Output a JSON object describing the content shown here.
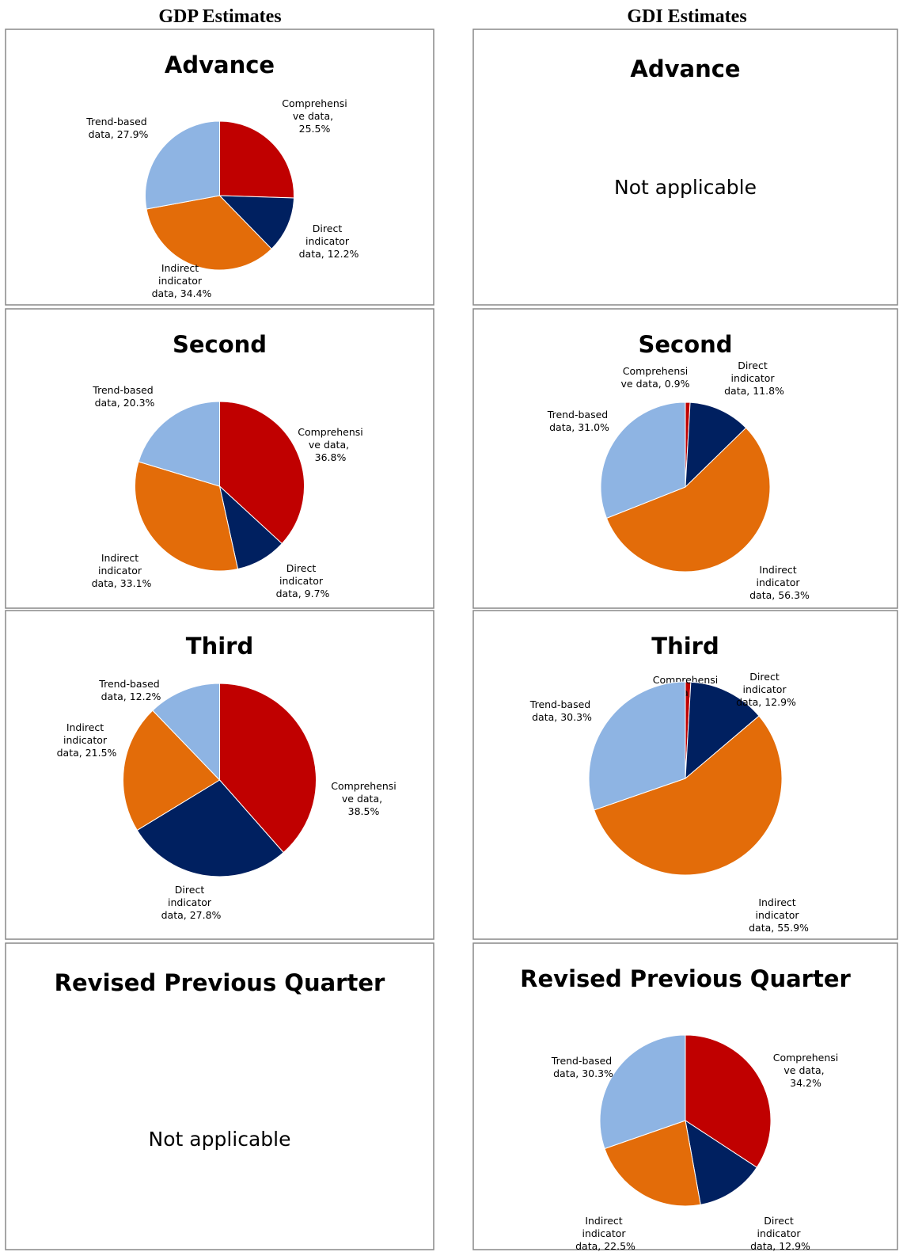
{
  "headers": [
    "GDP Estimates",
    "GDI Estimates"
  ],
  "chart_data": [
    {
      "type": "pie",
      "title": "Advance",
      "values": [
        25.5,
        12.2,
        34.4,
        27.9
      ],
      "value_labels": [
        "Comprehensive data, 25.5%",
        "Direct indicator data, 12.2%",
        "Indirect indicator data, 34.4%",
        "Trend-based data, 27.9%"
      ],
      "colors": [
        "#c00000",
        "#002060",
        "#e36c09",
        "#8eb4e3"
      ]
    },
    {
      "type": "pie",
      "title": "Second",
      "values": [
        36.8,
        9.7,
        33.1,
        20.3
      ],
      "value_labels": [
        "Comprehensive data, 36.8%",
        "Direct indicator data, 9.7%",
        "Indirect indicator data, 33.1%",
        "Trend-based data, 20.3%"
      ],
      "colors": [
        "#c00000",
        "#002060",
        "#e36c09",
        "#8eb4e3"
      ]
    },
    {
      "type": "pie",
      "title": "Third",
      "values": [
        38.5,
        27.8,
        21.5,
        12.2
      ],
      "value_labels": [
        "Comprehensive data, 38.5%",
        "Direct indicator data, 27.8%",
        "Indirect indicator data, 21.5%",
        "Trend-based data, 12.2%"
      ],
      "colors": [
        "#c00000",
        "#002060",
        "#e36c09",
        "#8eb4e3"
      ]
    },
    {
      "type": "pie",
      "title": "Second",
      "values": [
        0.9,
        11.8,
        56.3,
        31.0
      ],
      "value_labels": [
        "Comprehensive data, 0.9%",
        "Direct indicator data, 11.8%",
        "Indirect indicator data, 56.3%",
        "Trend-based data, 31.0%"
      ],
      "colors": [
        "#c00000",
        "#002060",
        "#e36c09",
        "#8eb4e3"
      ]
    },
    {
      "type": "pie",
      "title": "Third",
      "values": [
        0.9,
        12.9,
        55.9,
        30.3
      ],
      "value_labels": [
        "Comprehensive data, 0.9%",
        "Direct indicator data, 12.9%",
        "Indirect indicator data, 55.9%",
        "Trend-based data, 30.3%"
      ],
      "colors": [
        "#c00000",
        "#002060",
        "#e36c09",
        "#8eb4e3"
      ]
    },
    {
      "type": "pie",
      "title": "Revised Previous Quarter",
      "values": [
        34.2,
        12.9,
        22.5,
        30.3
      ],
      "value_labels": [
        "Comprehensive data, 34.2%",
        "Direct indicator data, 12.9%",
        "Indirect indicator data, 22.5%",
        "Trend-based data, 30.3%"
      ],
      "colors": [
        "#c00000",
        "#002060",
        "#e36c09",
        "#8eb4e3"
      ]
    }
  ],
  "not_applicable": [
    {
      "title": "Advance",
      "text": "Not applicable"
    },
    {
      "title": "Revised Previous Quarter",
      "text": "Not applicable"
    }
  ]
}
